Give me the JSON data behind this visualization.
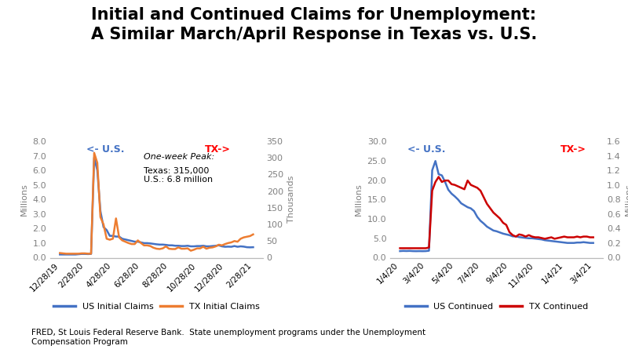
{
  "title_line1": "Initial and Continued Claims for Unemployment:",
  "title_line2": "A Similar March/April Response in Texas vs. U.S.",
  "title_fontsize": 15,
  "title_fontweight": "bold",
  "footnote": "FRED, St Louis Federal Reserve Bank.  State unemployment programs under the Unemployment\nCompensation Program",
  "left_chart": {
    "left_label": "Millions",
    "right_label": "Thousands",
    "left_ylim": [
      0.0,
      8.0
    ],
    "right_ylim": [
      0,
      350
    ],
    "left_yticks": [
      0.0,
      1.0,
      2.0,
      3.0,
      4.0,
      5.0,
      6.0,
      7.0,
      8.0
    ],
    "right_yticks": [
      0,
      50,
      100,
      150,
      200,
      250,
      300,
      350
    ],
    "us_label": "<- U.S.",
    "tx_label": "TX->",
    "annotation": "One-week Peak:\nTexas: 315,000\nU.S.: 6.8 million",
    "legend_us": "US Initial Claims",
    "legend_tx": "TX Initial Claims",
    "color_us": "#4472C4",
    "color_tx": "#ED7D31",
    "xtick_labels": [
      "12/28/19",
      "2/28/20",
      "4/28/20",
      "6/28/20",
      "8/28/20",
      "10/28/20",
      "12/28/20",
      "2/28/21"
    ],
    "us_data_millions": [
      0.22,
      0.22,
      0.22,
      0.22,
      0.22,
      0.22,
      0.24,
      0.26,
      0.26,
      0.25,
      0.26,
      6.87,
      6.0,
      3.2,
      2.1,
      1.9,
      1.5,
      1.5,
      1.45,
      1.45,
      1.3,
      1.25,
      1.2,
      1.15,
      1.1,
      1.1,
      1.05,
      1.0,
      1.0,
      0.98,
      0.95,
      0.92,
      0.9,
      0.9,
      0.88,
      0.85,
      0.85,
      0.82,
      0.82,
      0.8,
      0.8,
      0.82,
      0.78,
      0.78,
      0.8,
      0.8,
      0.82,
      0.78,
      0.78,
      0.8,
      0.82,
      0.85,
      0.78,
      0.75,
      0.76,
      0.75,
      0.8,
      0.75,
      0.78,
      0.76,
      0.72,
      0.71,
      0.72
    ],
    "tx_data_thousands": [
      14,
      13,
      12,
      12,
      12,
      12,
      12,
      13,
      13,
      12,
      12,
      315,
      285,
      122,
      100,
      57,
      54,
      57,
      118,
      61,
      52,
      48,
      44,
      41,
      41,
      52,
      44,
      37,
      37,
      35,
      30,
      27,
      26,
      28,
      34,
      27,
      26,
      26,
      31,
      27,
      27,
      28,
      21,
      24,
      28,
      28,
      33,
      27,
      30,
      31,
      34,
      39,
      37,
      41,
      44,
      46,
      50,
      48,
      57,
      61,
      63,
      65,
      70
    ]
  },
  "right_chart": {
    "left_label": "Millions",
    "right_label": "Millions",
    "left_ylim": [
      0.0,
      30.0
    ],
    "right_ylim": [
      0.0,
      1.6
    ],
    "left_yticks": [
      0.0,
      5.0,
      10.0,
      15.0,
      20.0,
      25.0,
      30.0
    ],
    "right_yticks": [
      0.0,
      0.2,
      0.4,
      0.6,
      0.8,
      1.0,
      1.2,
      1.4,
      1.6
    ],
    "us_label": "<- U.S.",
    "tx_label": "TX->",
    "legend_us": "US Continued",
    "legend_tx": "TX Continued",
    "color_us": "#4472C4",
    "color_tx": "#CC0000",
    "xtick_labels": [
      "1/4/20",
      "3/4/20",
      "5/4/20",
      "7/4/20",
      "9/4/20",
      "11/4/20",
      "1/4/21",
      "3/4/21"
    ],
    "us_data": [
      1.7,
      1.75,
      1.72,
      1.75,
      1.7,
      1.68,
      1.7,
      1.68,
      1.7,
      1.8,
      22.5,
      24.9,
      21.5,
      21.2,
      19.5,
      17.5,
      16.5,
      15.8,
      15.0,
      14.0,
      13.5,
      13.0,
      12.7,
      12.0,
      10.5,
      9.5,
      8.8,
      8.0,
      7.5,
      7.0,
      6.8,
      6.5,
      6.2,
      6.0,
      5.8,
      5.5,
      5.5,
      5.3,
      5.2,
      5.1,
      5.0,
      5.0,
      4.9,
      4.8,
      4.7,
      4.5,
      4.4,
      4.3,
      4.2,
      4.1,
      4.0,
      3.9,
      3.8,
      3.8,
      3.8,
      3.9,
      3.9,
      4.0,
      3.9,
      3.8,
      3.8
    ],
    "tx_data": [
      0.13,
      0.13,
      0.13,
      0.13,
      0.13,
      0.13,
      0.13,
      0.13,
      0.13,
      0.14,
      0.92,
      1.04,
      1.11,
      1.04,
      1.06,
      1.06,
      1.01,
      1.0,
      0.98,
      0.96,
      0.94,
      1.06,
      1.0,
      0.98,
      0.96,
      0.92,
      0.83,
      0.74,
      0.68,
      0.62,
      0.58,
      0.54,
      0.48,
      0.45,
      0.35,
      0.31,
      0.29,
      0.32,
      0.31,
      0.29,
      0.31,
      0.29,
      0.28,
      0.28,
      0.27,
      0.26,
      0.27,
      0.28,
      0.26,
      0.27,
      0.28,
      0.29,
      0.28,
      0.28,
      0.28,
      0.29,
      0.28,
      0.29,
      0.29,
      0.28,
      0.28
    ]
  }
}
